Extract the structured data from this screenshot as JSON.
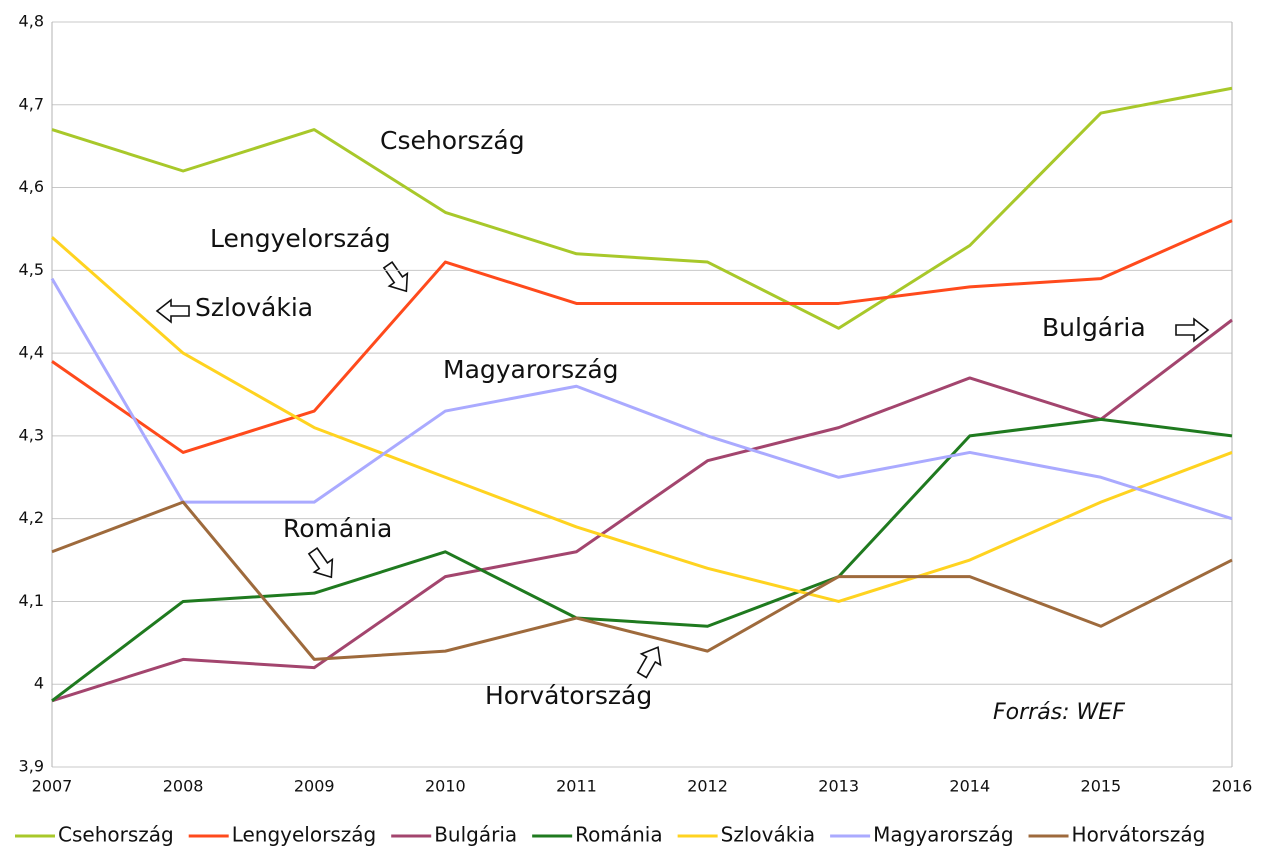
{
  "chart_data": {
    "type": "line",
    "x": [
      2007,
      2008,
      2009,
      2010,
      2011,
      2012,
      2013,
      2014,
      2015,
      2016
    ],
    "xlim": [
      2007,
      2016
    ],
    "ylim": [
      3.9,
      4.8
    ],
    "yticks": [
      {
        "value": 3.9,
        "label": "3,9"
      },
      4,
      {
        "value": 4.1,
        "label": "4,1"
      },
      {
        "value": 4.2,
        "label": "4,2"
      },
      {
        "value": 4.3,
        "label": "4,3"
      },
      {
        "value": 4.4,
        "label": "4,4"
      },
      {
        "value": 4.5,
        "label": "4,5"
      },
      {
        "value": 4.6,
        "label": "4,6"
      },
      {
        "value": 4.7,
        "label": "4,7"
      },
      {
        "value": 4.8,
        "label": "4,8"
      }
    ],
    "grid": true,
    "legend": "bottom",
    "series": [
      {
        "name": "Csehország",
        "color": "#a8c82a",
        "values": [
          4.67,
          4.62,
          4.67,
          4.57,
          4.52,
          4.51,
          4.43,
          4.53,
          4.69,
          4.72
        ]
      },
      {
        "name": "Lengyelország",
        "color": "#ff4a1c",
        "values": [
          4.39,
          4.28,
          4.33,
          4.51,
          4.46,
          4.46,
          4.46,
          4.48,
          4.49,
          4.56
        ]
      },
      {
        "name": "Bulgária",
        "color": "#a3456e",
        "values": [
          3.98,
          4.03,
          4.02,
          4.13,
          4.16,
          4.27,
          4.31,
          4.37,
          4.32,
          4.44
        ]
      },
      {
        "name": "Románia",
        "color": "#1f7a1f",
        "values": [
          3.98,
          4.1,
          4.11,
          4.16,
          4.08,
          4.07,
          4.13,
          4.3,
          4.32,
          4.3
        ]
      },
      {
        "name": "Szlovákia",
        "color": "#ffd320",
        "values": [
          4.54,
          4.4,
          4.31,
          4.25,
          4.19,
          4.14,
          4.1,
          4.15,
          4.22,
          4.28
        ]
      },
      {
        "name": "Magyarország",
        "color": "#aaaaff",
        "values": [
          4.49,
          4.22,
          4.22,
          4.33,
          4.36,
          4.3,
          4.25,
          4.28,
          4.25,
          4.2
        ]
      },
      {
        "name": "Horvátország",
        "color": "#9e6a3c",
        "values": [
          4.16,
          4.22,
          4.03,
          4.04,
          4.08,
          4.04,
          4.13,
          4.13,
          4.07,
          4.15
        ]
      }
    ],
    "annotations": [
      "Csehország",
      "Lengyelország",
      "Szlovákia",
      "Magyarország",
      "Bulgária",
      "Románia",
      "Horvátország"
    ],
    "source": "Forrás: WEF"
  }
}
